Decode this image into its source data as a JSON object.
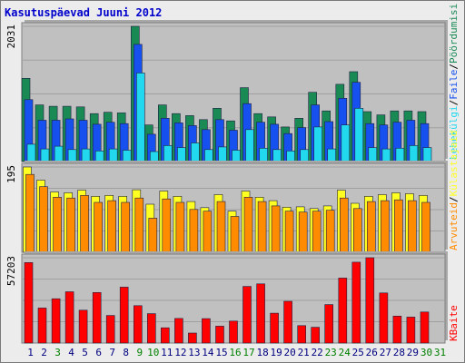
{
  "title": "Kasutuspäevad Juuni 2012",
  "colors": {
    "title": "#0000cc",
    "frame_bg": "#ececec",
    "panel_bg": "#c0c0c0",
    "grid": "#a0a0a0",
    "pageviews": "#1a8a55",
    "files": "#1650ee",
    "hits": "#22d8ee",
    "visits": "#ffff22",
    "sites": "#ff8c00",
    "kbytes": "#ff0000",
    "day_weekday": "#000080",
    "day_weekend": "#008000"
  },
  "chart_data": [
    {
      "type": "bar",
      "panel": "top",
      "ymax_label": "2031",
      "ylim": [
        0,
        2031
      ],
      "legend": [
        "Pöördumisi",
        "Faile",
        "Lehekülgi"
      ],
      "legend_colors": [
        "#1a8a55",
        "#1650ee",
        "#22d8ee"
      ],
      "categories": [
        "1",
        "2",
        "3",
        "4",
        "5",
        "6",
        "7",
        "8",
        "9",
        "10",
        "11",
        "12",
        "13",
        "14",
        "15",
        "16",
        "17",
        "18",
        "19",
        "20",
        "21",
        "22",
        "23",
        "24",
        "25",
        "26",
        "27",
        "28",
        "29",
        "30",
        "31"
      ],
      "series": [
        {
          "name": "Pöördumisi",
          "color": "#1a8a55",
          "values": [
            1250,
            850,
            830,
            830,
            820,
            720,
            740,
            730,
            2031,
            550,
            850,
            720,
            690,
            630,
            800,
            610,
            1110,
            720,
            670,
            520,
            650,
            1040,
            760,
            1160,
            1350,
            750,
            700,
            760,
            760,
            750,
            null
          ]
        },
        {
          "name": "Faile",
          "color": "#1650ee",
          "values": [
            930,
            620,
            620,
            640,
            620,
            560,
            590,
            570,
            1760,
            410,
            650,
            580,
            540,
            480,
            630,
            470,
            870,
            590,
            560,
            420,
            510,
            850,
            600,
            950,
            1190,
            570,
            550,
            590,
            620,
            570,
            null
          ]
        },
        {
          "name": "Lehekülgi",
          "color": "#22d8ee",
          "values": [
            260,
            190,
            230,
            180,
            190,
            160,
            190,
            170,
            1330,
            150,
            240,
            210,
            280,
            180,
            220,
            170,
            480,
            200,
            180,
            160,
            180,
            520,
            190,
            550,
            800,
            210,
            190,
            200,
            240,
            210,
            null
          ]
        }
      ]
    },
    {
      "type": "bar",
      "panel": "middle",
      "ymax_label": "195",
      "ylim": [
        0,
        195
      ],
      "legend": [
        "Külastajaid",
        "Arvuteid"
      ],
      "legend_colors": [
        "#ffff22",
        "#ff8c00"
      ],
      "categories": [
        "1",
        "2",
        "3",
        "4",
        "5",
        "6",
        "7",
        "8",
        "9",
        "10",
        "11",
        "12",
        "13",
        "14",
        "15",
        "16",
        "17",
        "18",
        "19",
        "20",
        "21",
        "22",
        "23",
        "24",
        "25",
        "26",
        "27",
        "28",
        "29",
        "30",
        "31"
      ],
      "series": [
        {
          "name": "Külastajaid",
          "color": "#ffff22",
          "values": [
            195,
            165,
            138,
            136,
            142,
            128,
            130,
            128,
            143,
            110,
            140,
            128,
            116,
            102,
            132,
            94,
            140,
            126,
            118,
            103,
            104,
            100,
            106,
            142,
            112,
            128,
            132,
            136,
            134,
            130,
            null
          ]
        },
        {
          "name": "Arvuteid",
          "color": "#ff8c00",
          "values": [
            178,
            150,
            126,
            124,
            130,
            114,
            118,
            114,
            124,
            78,
            122,
            114,
            98,
            94,
            116,
            82,
            126,
            116,
            106,
            94,
            92,
            94,
            96,
            124,
            100,
            116,
            118,
            120,
            118,
            114,
            null
          ]
        }
      ]
    },
    {
      "type": "bar",
      "panel": "bottom",
      "ymax_label": "57203",
      "ylim": [
        0,
        57203
      ],
      "legend": [
        "KBaite"
      ],
      "legend_colors": [
        "#ff0000"
      ],
      "categories": [
        "1",
        "2",
        "3",
        "4",
        "5",
        "6",
        "7",
        "8",
        "9",
        "10",
        "11",
        "12",
        "13",
        "14",
        "15",
        "16",
        "17",
        "18",
        "19",
        "20",
        "21",
        "22",
        "23",
        "24",
        "25",
        "26",
        "27",
        "28",
        "29",
        "30",
        "31"
      ],
      "series": [
        {
          "name": "KBaite",
          "color": "#ff0000",
          "values": [
            54000,
            23500,
            29700,
            34400,
            22000,
            33900,
            18500,
            37500,
            25100,
            19700,
            10200,
            16500,
            6700,
            16400,
            11300,
            14700,
            38000,
            39700,
            20000,
            28000,
            11700,
            10600,
            25800,
            43600,
            54200,
            57203,
            33600,
            18100,
            17400,
            20800,
            null
          ]
        }
      ]
    }
  ],
  "days": [
    {
      "label": "1",
      "weekend": false
    },
    {
      "label": "2",
      "weekend": false
    },
    {
      "label": "3",
      "weekend": true
    },
    {
      "label": "4",
      "weekend": false
    },
    {
      "label": "5",
      "weekend": false
    },
    {
      "label": "6",
      "weekend": false
    },
    {
      "label": "7",
      "weekend": false
    },
    {
      "label": "8",
      "weekend": false
    },
    {
      "label": "9",
      "weekend": true
    },
    {
      "label": "10",
      "weekend": true
    },
    {
      "label": "11",
      "weekend": false
    },
    {
      "label": "12",
      "weekend": false
    },
    {
      "label": "13",
      "weekend": false
    },
    {
      "label": "14",
      "weekend": false
    },
    {
      "label": "15",
      "weekend": false
    },
    {
      "label": "16",
      "weekend": true
    },
    {
      "label": "17",
      "weekend": true
    },
    {
      "label": "18",
      "weekend": false
    },
    {
      "label": "19",
      "weekend": false
    },
    {
      "label": "20",
      "weekend": false
    },
    {
      "label": "21",
      "weekend": false
    },
    {
      "label": "22",
      "weekend": false
    },
    {
      "label": "23",
      "weekend": true
    },
    {
      "label": "24",
      "weekend": true
    },
    {
      "label": "25",
      "weekend": false
    },
    {
      "label": "26",
      "weekend": false
    },
    {
      "label": "27",
      "weekend": false
    },
    {
      "label": "28",
      "weekend": false
    },
    {
      "label": "29",
      "weekend": false
    },
    {
      "label": "30",
      "weekend": true
    },
    {
      "label": "31",
      "weekend": true
    }
  ],
  "separator": "/"
}
